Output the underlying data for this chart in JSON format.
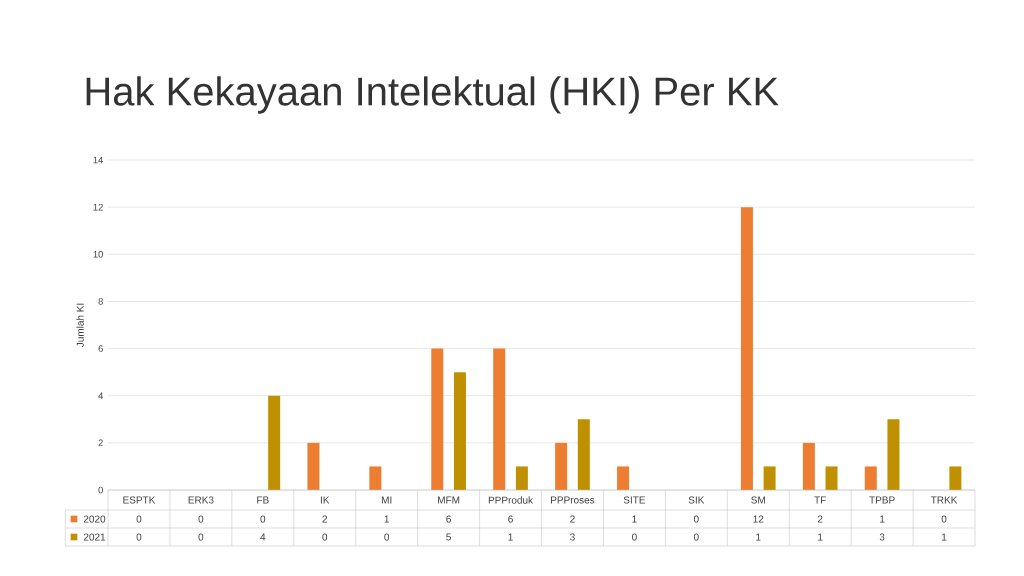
{
  "chart_data": {
    "type": "bar",
    "title": "Hak Kekayaan Intelektual (HKI) Per KK",
    "ylabel": "Jumlah KI",
    "categories": [
      "ESPTK",
      "ERK3",
      "FB",
      "IK",
      "MI",
      "MFM",
      "PPProduk",
      "PPProses",
      "SITE",
      "SIK",
      "SM",
      "TF",
      "TPBP",
      "TRKK"
    ],
    "series": [
      {
        "name": "2020",
        "color": "#ed7d31",
        "values": [
          0,
          0,
          0,
          2,
          1,
          6,
          6,
          2,
          1,
          0,
          12,
          2,
          1,
          0
        ]
      },
      {
        "name": "2021",
        "color": "#bf9000",
        "values": [
          0,
          0,
          4,
          0,
          0,
          5,
          1,
          3,
          0,
          0,
          1,
          1,
          3,
          1
        ]
      }
    ],
    "ylim": [
      0,
      14
    ],
    "yticks": [
      0,
      2,
      4,
      6,
      8,
      10,
      12,
      14
    ],
    "grid": "y",
    "legend": "bottom",
    "data_labels": true
  }
}
